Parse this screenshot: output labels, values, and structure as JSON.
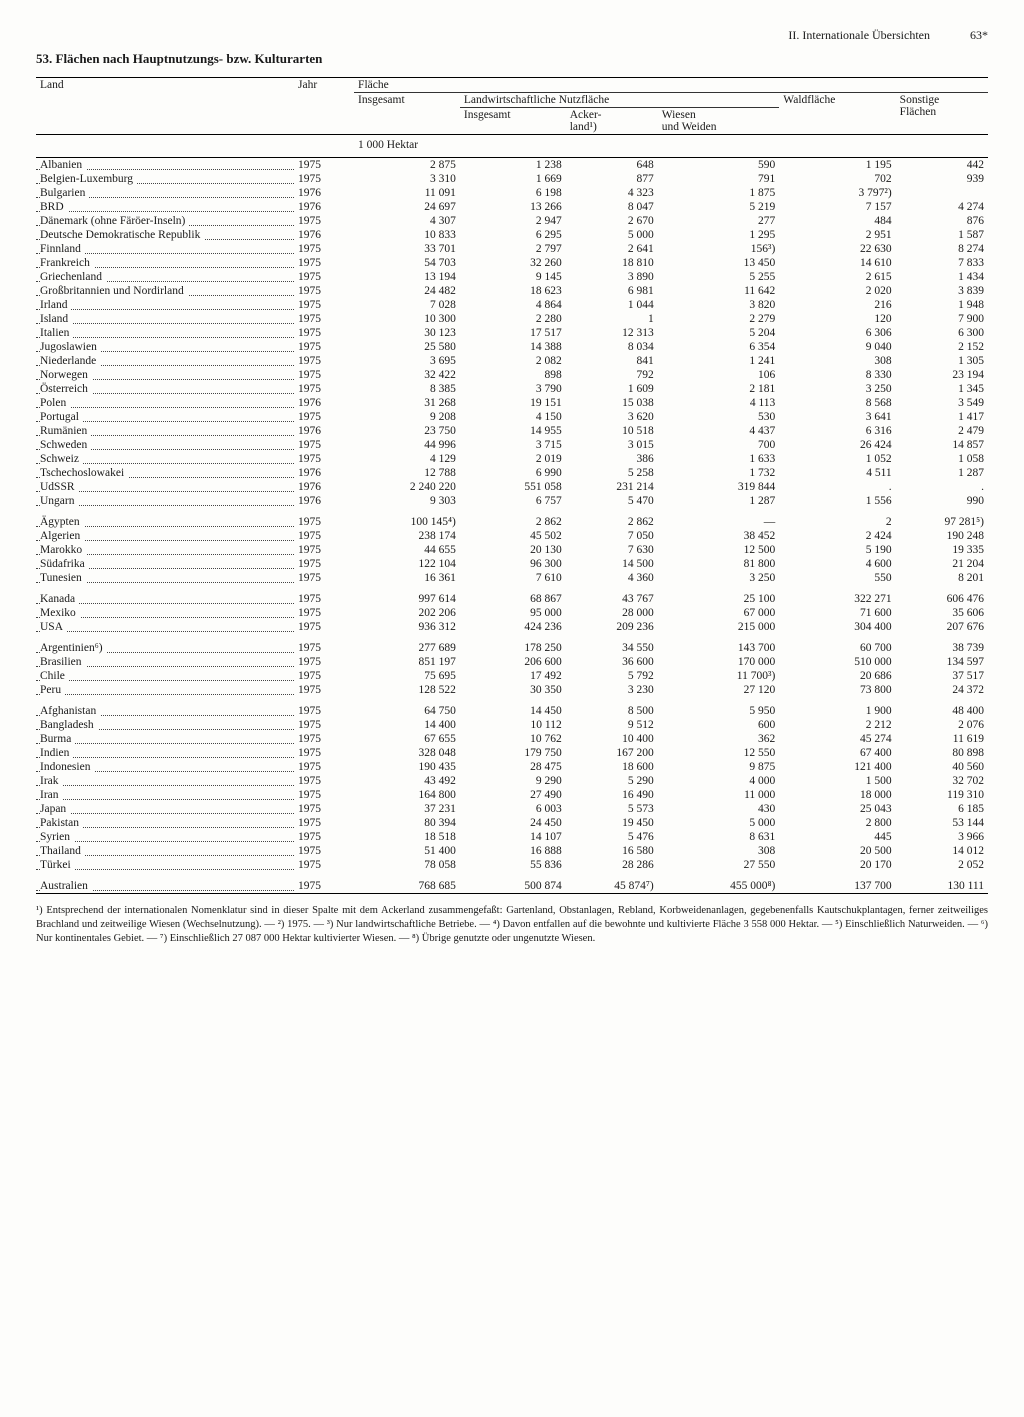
{
  "header": {
    "section": "II. Internationale Übersichten",
    "page": "63*",
    "title": "53. Flächen nach Hauptnutzungs- bzw. Kulturarten"
  },
  "columns": {
    "land": "Land",
    "jahr": "Jahr",
    "flaeche": "Fläche",
    "insgesamt": "Insgesamt",
    "landw": "Landwirtschaftliche Nutzfläche",
    "landw_insg": "Insgesamt",
    "acker": "Acker-\nland¹)",
    "wiesen": "Wiesen\nund Weiden",
    "wald": "Waldfläche",
    "sonst": "Sonstige\nFlächen",
    "unit": "1 000 Hektar"
  },
  "groups": [
    {
      "rows": [
        {
          "c": "Albanien",
          "y": "1975",
          "v": [
            "2 875",
            "1 238",
            "648",
            "590",
            "1 195",
            "442"
          ]
        },
        {
          "c": "Belgien-Luxemburg",
          "y": "1975",
          "v": [
            "3 310",
            "1 669",
            "877",
            "791",
            "702",
            "939"
          ]
        },
        {
          "c": "Bulgarien",
          "y": "1976",
          "v": [
            "11 091",
            "6 198",
            "4 323",
            "1 875",
            "3 797²)",
            ""
          ]
        },
        {
          "c": "BRD",
          "y": "1976",
          "v": [
            "24 697",
            "13 266",
            "8 047",
            "5 219",
            "7 157",
            "4 274"
          ]
        },
        {
          "c": "Dänemark (ohne Färöer-Inseln)",
          "y": "1975",
          "v": [
            "4 307",
            "2 947",
            "2 670",
            "277",
            "484",
            "876"
          ]
        },
        {
          "c": "Deutsche Demokratische Republik",
          "y": "1976",
          "v": [
            "10 833",
            "6 295",
            "5 000",
            "1 295",
            "2 951",
            "1 587"
          ]
        },
        {
          "c": "Finnland",
          "y": "1975",
          "v": [
            "33 701",
            "2 797",
            "2 641",
            "156³)",
            "22 630",
            "8 274"
          ]
        },
        {
          "c": "Frankreich",
          "y": "1975",
          "v": [
            "54 703",
            "32 260",
            "18 810",
            "13 450",
            "14 610",
            "7 833"
          ]
        },
        {
          "c": "Griechenland",
          "y": "1975",
          "v": [
            "13 194",
            "9 145",
            "3 890",
            "5 255",
            "2 615",
            "1 434"
          ]
        },
        {
          "c": "Großbritannien und Nordirland",
          "y": "1975",
          "v": [
            "24 482",
            "18 623",
            "6 981",
            "11 642",
            "2 020",
            "3 839"
          ]
        },
        {
          "c": "Irland",
          "y": "1975",
          "v": [
            "7 028",
            "4 864",
            "1 044",
            "3 820",
            "216",
            "1 948"
          ]
        },
        {
          "c": "Island",
          "y": "1975",
          "v": [
            "10 300",
            "2 280",
            "1",
            "2 279",
            "120",
            "7 900"
          ]
        },
        {
          "c": "Italien",
          "y": "1975",
          "v": [
            "30 123",
            "17 517",
            "12 313",
            "5 204",
            "6 306",
            "6 300"
          ]
        },
        {
          "c": "Jugoslawien",
          "y": "1975",
          "v": [
            "25 580",
            "14 388",
            "8 034",
            "6 354",
            "9 040",
            "2 152"
          ]
        },
        {
          "c": "Niederlande",
          "y": "1975",
          "v": [
            "3 695",
            "2 082",
            "841",
            "1 241",
            "308",
            "1 305"
          ]
        },
        {
          "c": "Norwegen",
          "y": "1975",
          "v": [
            "32 422",
            "898",
            "792",
            "106",
            "8 330",
            "23 194"
          ]
        },
        {
          "c": "Österreich",
          "y": "1975",
          "v": [
            "8 385",
            "3 790",
            "1 609",
            "2 181",
            "3 250",
            "1 345"
          ]
        },
        {
          "c": "Polen",
          "y": "1976",
          "v": [
            "31 268",
            "19 151",
            "15 038",
            "4 113",
            "8 568",
            "3 549"
          ]
        },
        {
          "c": "Portugal",
          "y": "1975",
          "v": [
            "9 208",
            "4 150",
            "3 620",
            "530",
            "3 641",
            "1 417"
          ]
        },
        {
          "c": "Rumänien",
          "y": "1976",
          "v": [
            "23 750",
            "14 955",
            "10 518",
            "4 437",
            "6 316",
            "2 479"
          ]
        },
        {
          "c": "Schweden",
          "y": "1975",
          "v": [
            "44 996",
            "3 715",
            "3 015",
            "700",
            "26 424",
            "14 857"
          ]
        },
        {
          "c": "Schweiz",
          "y": "1975",
          "v": [
            "4 129",
            "2 019",
            "386",
            "1 633",
            "1 052",
            "1 058"
          ]
        },
        {
          "c": "Tschechoslowakei",
          "y": "1976",
          "v": [
            "12 788",
            "6 990",
            "5 258",
            "1 732",
            "4 511",
            "1 287"
          ]
        },
        {
          "c": "UdSSR",
          "y": "1976",
          "v": [
            "2 240 220",
            "551 058",
            "231 214",
            "319 844",
            ".",
            "."
          ]
        },
        {
          "c": "Ungarn",
          "y": "1976",
          "v": [
            "9 303",
            "6 757",
            "5 470",
            "1 287",
            "1 556",
            "990"
          ]
        }
      ]
    },
    {
      "rows": [
        {
          "c": "Ägypten",
          "y": "1975",
          "v": [
            "100 145⁴)",
            "2 862",
            "2 862",
            "—",
            "2",
            "97 281⁵)"
          ]
        },
        {
          "c": "Algerien",
          "y": "1975",
          "v": [
            "238 174",
            "45 502",
            "7 050",
            "38 452",
            "2 424",
            "190 248"
          ]
        },
        {
          "c": "Marokko",
          "y": "1975",
          "v": [
            "44 655",
            "20 130",
            "7 630",
            "12 500",
            "5 190",
            "19 335"
          ]
        },
        {
          "c": "Südafrika",
          "y": "1975",
          "v": [
            "122 104",
            "96 300",
            "14 500",
            "81 800",
            "4 600",
            "21 204"
          ]
        },
        {
          "c": "Tunesien",
          "y": "1975",
          "v": [
            "16 361",
            "7 610",
            "4 360",
            "3 250",
            "550",
            "8 201"
          ]
        }
      ]
    },
    {
      "rows": [
        {
          "c": "Kanada",
          "y": "1975",
          "v": [
            "997 614",
            "68 867",
            "43 767",
            "25 100",
            "322 271",
            "606 476"
          ]
        },
        {
          "c": "Mexiko",
          "y": "1975",
          "v": [
            "202 206",
            "95 000",
            "28 000",
            "67 000",
            "71 600",
            "35 606"
          ]
        },
        {
          "c": "USA",
          "y": "1975",
          "v": [
            "936 312",
            "424 236",
            "209 236",
            "215 000",
            "304 400",
            "207 676"
          ]
        }
      ]
    },
    {
      "rows": [
        {
          "c": "Argentinien⁶)",
          "y": "1975",
          "v": [
            "277 689",
            "178 250",
            "34 550",
            "143 700",
            "60 700",
            "38 739"
          ]
        },
        {
          "c": "Brasilien",
          "y": "1975",
          "v": [
            "851 197",
            "206 600",
            "36 600",
            "170 000",
            "510 000",
            "134 597"
          ]
        },
        {
          "c": "Chile",
          "y": "1975",
          "v": [
            "75 695",
            "17 492",
            "5 792",
            "11 700³)",
            "20 686",
            "37 517"
          ]
        },
        {
          "c": "Peru",
          "y": "1975",
          "v": [
            "128 522",
            "30 350",
            "3 230",
            "27 120",
            "73 800",
            "24 372"
          ]
        }
      ]
    },
    {
      "rows": [
        {
          "c": "Afghanistan",
          "y": "1975",
          "v": [
            "64 750",
            "14 450",
            "8 500",
            "5 950",
            "1 900",
            "48 400"
          ]
        },
        {
          "c": "Bangladesh",
          "y": "1975",
          "v": [
            "14 400",
            "10 112",
            "9 512",
            "600",
            "2 212",
            "2 076"
          ]
        },
        {
          "c": "Burma",
          "y": "1975",
          "v": [
            "67 655",
            "10 762",
            "10 400",
            "362",
            "45 274",
            "11 619"
          ]
        },
        {
          "c": "Indien",
          "y": "1975",
          "v": [
            "328 048",
            "179 750",
            "167 200",
            "12 550",
            "67 400",
            "80 898"
          ]
        },
        {
          "c": "Indonesien",
          "y": "1975",
          "v": [
            "190 435",
            "28 475",
            "18 600",
            "9 875",
            "121 400",
            "40 560"
          ]
        },
        {
          "c": "Irak",
          "y": "1975",
          "v": [
            "43 492",
            "9 290",
            "5 290",
            "4 000",
            "1 500",
            "32 702"
          ]
        },
        {
          "c": "Iran",
          "y": "1975",
          "v": [
            "164 800",
            "27 490",
            "16 490",
            "11 000",
            "18 000",
            "119 310"
          ]
        },
        {
          "c": "Japan",
          "y": "1975",
          "v": [
            "37 231",
            "6 003",
            "5 573",
            "430",
            "25 043",
            "6 185"
          ]
        },
        {
          "c": "Pakistan",
          "y": "1975",
          "v": [
            "80 394",
            "24 450",
            "19 450",
            "5 000",
            "2 800",
            "53 144"
          ]
        },
        {
          "c": "Syrien",
          "y": "1975",
          "v": [
            "18 518",
            "14 107",
            "5 476",
            "8 631",
            "445",
            "3 966"
          ]
        },
        {
          "c": "Thailand",
          "y": "1975",
          "v": [
            "51 400",
            "16 888",
            "16 580",
            "308",
            "20 500",
            "14 012"
          ]
        },
        {
          "c": "Türkei",
          "y": "1975",
          "v": [
            "78 058",
            "55 836",
            "28 286",
            "27 550",
            "20 170",
            "2 052"
          ]
        }
      ]
    },
    {
      "rows": [
        {
          "c": "Australien",
          "y": "1975",
          "v": [
            "768 685",
            "500 874",
            "45 874⁷)",
            "455 000⁸)",
            "137 700",
            "130 111"
          ]
        }
      ]
    }
  ],
  "footnotes": "¹) Entsprechend der internationalen Nomenklatur sind in dieser Spalte mit dem Ackerland zusammengefaßt: Gartenland, Obstanlagen, Rebland, Korbweidenanlagen, gegebenenfalls Kautschukplantagen, ferner zeitweiliges Brachland und zeitweilige Wiesen (Wechselnutzung). — ²) 1975. — ³) Nur landwirtschaftliche Betriebe. — ⁴) Davon entfallen auf die bewohnte und kultivierte Fläche 3 558 000 Hektar. — ⁵) Einschließlich Naturweiden. — ⁶) Nur kontinentales Gebiet. — ⁷) Einschließlich 27 087 000 Hektar kultivierter Wiesen. — ⁸) Übrige genutzte oder ungenutzte Wiesen."
}
